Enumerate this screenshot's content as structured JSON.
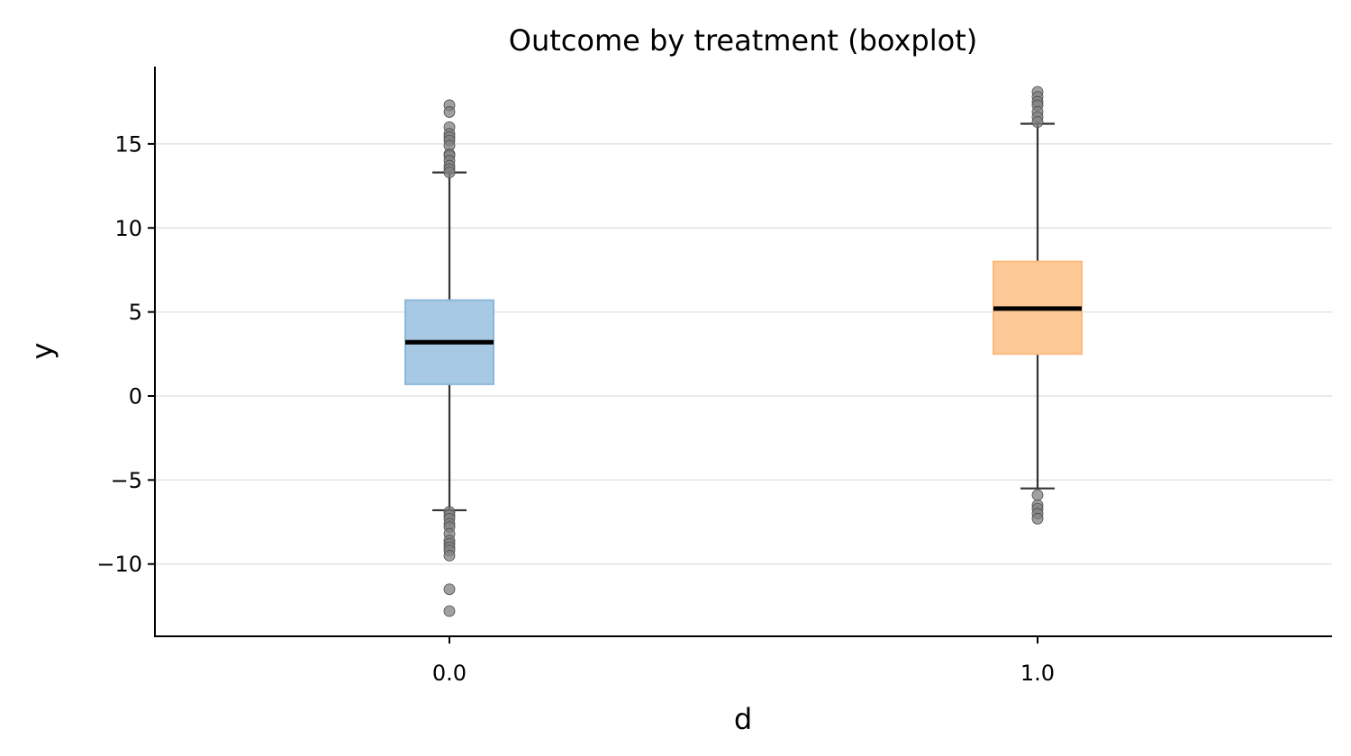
{
  "chart_data": {
    "type": "boxplot",
    "title": "Outcome by treatment (boxplot)",
    "xlabel": "d",
    "ylabel": "y",
    "categories": [
      "0.0",
      "1.0"
    ],
    "ylim": [
      -14.3,
      19.6
    ],
    "yticks": [
      -10,
      -5,
      0,
      5,
      10,
      15
    ],
    "ytick_labels": [
      "−10",
      "−5",
      "0",
      "5",
      "10",
      "15"
    ],
    "grid": "y",
    "legend": "none",
    "boxes": [
      {
        "category": "0.0",
        "whisker_low": -6.8,
        "q1": 0.7,
        "median": 3.2,
        "q3": 5.7,
        "whisker_high": 13.3,
        "color": "#a7c9e3",
        "edge_color": "#8db8da",
        "fliers": [
          17.3,
          16.9,
          16.0,
          15.6,
          15.4,
          15.2,
          14.9,
          14.4,
          14.3,
          14.0,
          13.7,
          13.5,
          13.3,
          -6.9,
          -7.1,
          -7.3,
          -7.6,
          -7.8,
          -8.2,
          -8.6,
          -8.8,
          -9.0,
          -9.2,
          -9.5,
          -11.5,
          -12.8
        ]
      },
      {
        "category": "1.0",
        "whisker_low": -5.5,
        "q1": 2.5,
        "median": 5.2,
        "q3": 8.0,
        "whisker_high": 16.2,
        "color": "#fdc996",
        "edge_color": "#fcb97c",
        "fliers": [
          18.1,
          17.8,
          17.5,
          17.3,
          16.9,
          16.6,
          16.3,
          -5.9,
          -6.5,
          -6.7,
          -7.0,
          -7.3
        ]
      }
    ]
  }
}
